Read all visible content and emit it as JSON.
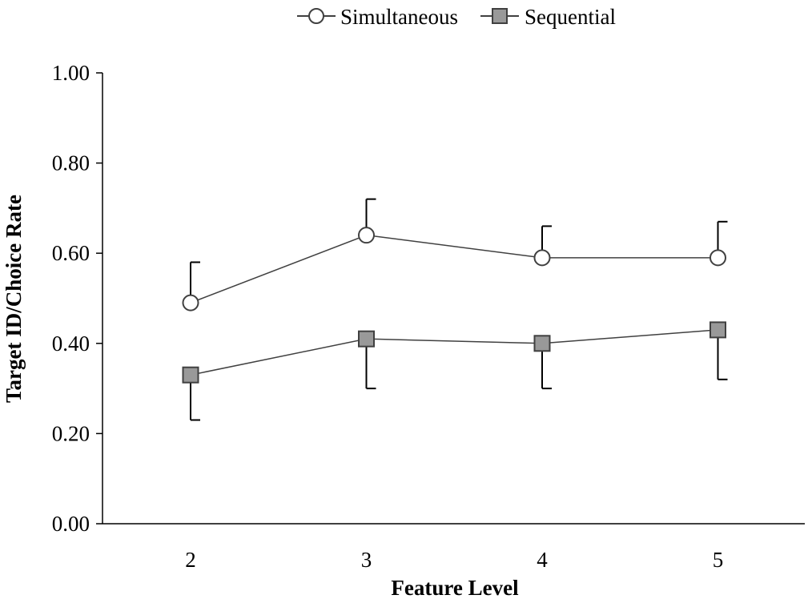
{
  "chart_data": {
    "type": "line",
    "xlabel": "Feature Level",
    "ylabel": "Target ID/Choice Rate",
    "categories": [
      "2",
      "3",
      "4",
      "5"
    ],
    "ylim": [
      0.0,
      1.0
    ],
    "yticks": [
      "0.00",
      "0.20",
      "0.40",
      "0.60",
      "0.80",
      "1.00"
    ],
    "grid": false,
    "legend_position": "top-center",
    "series": [
      {
        "name": "Simultaneous",
        "marker": "circle",
        "marker_fill": "#ffffff",
        "line_color": "#404040",
        "values": [
          0.49,
          0.64,
          0.59,
          0.59
        ],
        "error_upper": [
          0.58,
          0.72,
          0.66,
          0.67
        ],
        "error_direction": "up"
      },
      {
        "name": "Sequential",
        "marker": "square",
        "marker_fill": "#999999",
        "line_color": "#404040",
        "values": [
          0.33,
          0.41,
          0.4,
          0.43
        ],
        "error_lower": [
          0.23,
          0.3,
          0.3,
          0.32
        ],
        "error_direction": "down"
      }
    ]
  }
}
